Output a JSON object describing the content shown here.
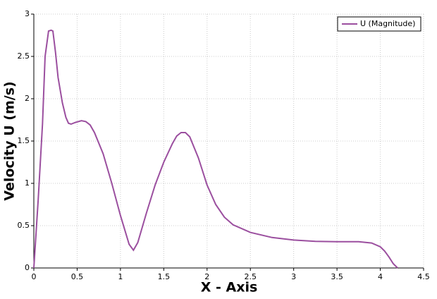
{
  "chart_data": {
    "type": "line",
    "x_label": "X - Axis",
    "y_label": "Velocity U (m/s)",
    "x": [
      0,
      0.05,
      0.1,
      0.13,
      0.17,
      0.2,
      0.22,
      0.25,
      0.28,
      0.33,
      0.37,
      0.4,
      0.43,
      0.48,
      0.55,
      0.6,
      0.65,
      0.7,
      0.8,
      0.9,
      1.0,
      1.1,
      1.15,
      1.2,
      1.3,
      1.4,
      1.5,
      1.6,
      1.65,
      1.7,
      1.75,
      1.8,
      1.9,
      2.0,
      2.1,
      2.2,
      2.3,
      2.5,
      2.75,
      3.0,
      3.25,
      3.5,
      3.75,
      3.9,
      4.0,
      4.05,
      4.1,
      4.15,
      4.2
    ],
    "series": [
      {
        "name": "U (Magnitude)",
        "color": "#9b4f9f",
        "values": [
          0,
          0.8,
          1.7,
          2.5,
          2.8,
          2.81,
          2.8,
          2.55,
          2.25,
          1.95,
          1.78,
          1.71,
          1.7,
          1.72,
          1.74,
          1.73,
          1.69,
          1.6,
          1.35,
          1.0,
          0.62,
          0.28,
          0.21,
          0.3,
          0.65,
          0.98,
          1.25,
          1.47,
          1.56,
          1.6,
          1.6,
          1.55,
          1.3,
          0.98,
          0.75,
          0.6,
          0.51,
          0.42,
          0.36,
          0.33,
          0.315,
          0.31,
          0.31,
          0.295,
          0.25,
          0.2,
          0.13,
          0.05,
          0
        ]
      }
    ],
    "xlim": [
      0,
      4.5
    ],
    "xticks": [
      0,
      0.5,
      1,
      1.5,
      2,
      2.5,
      3,
      3.5,
      4,
      4.5
    ],
    "ylim": [
      0,
      3
    ],
    "yticks": [
      0,
      0.5,
      1,
      1.5,
      2,
      2.5,
      3
    ],
    "grid": true,
    "legend": "upper-right"
  }
}
